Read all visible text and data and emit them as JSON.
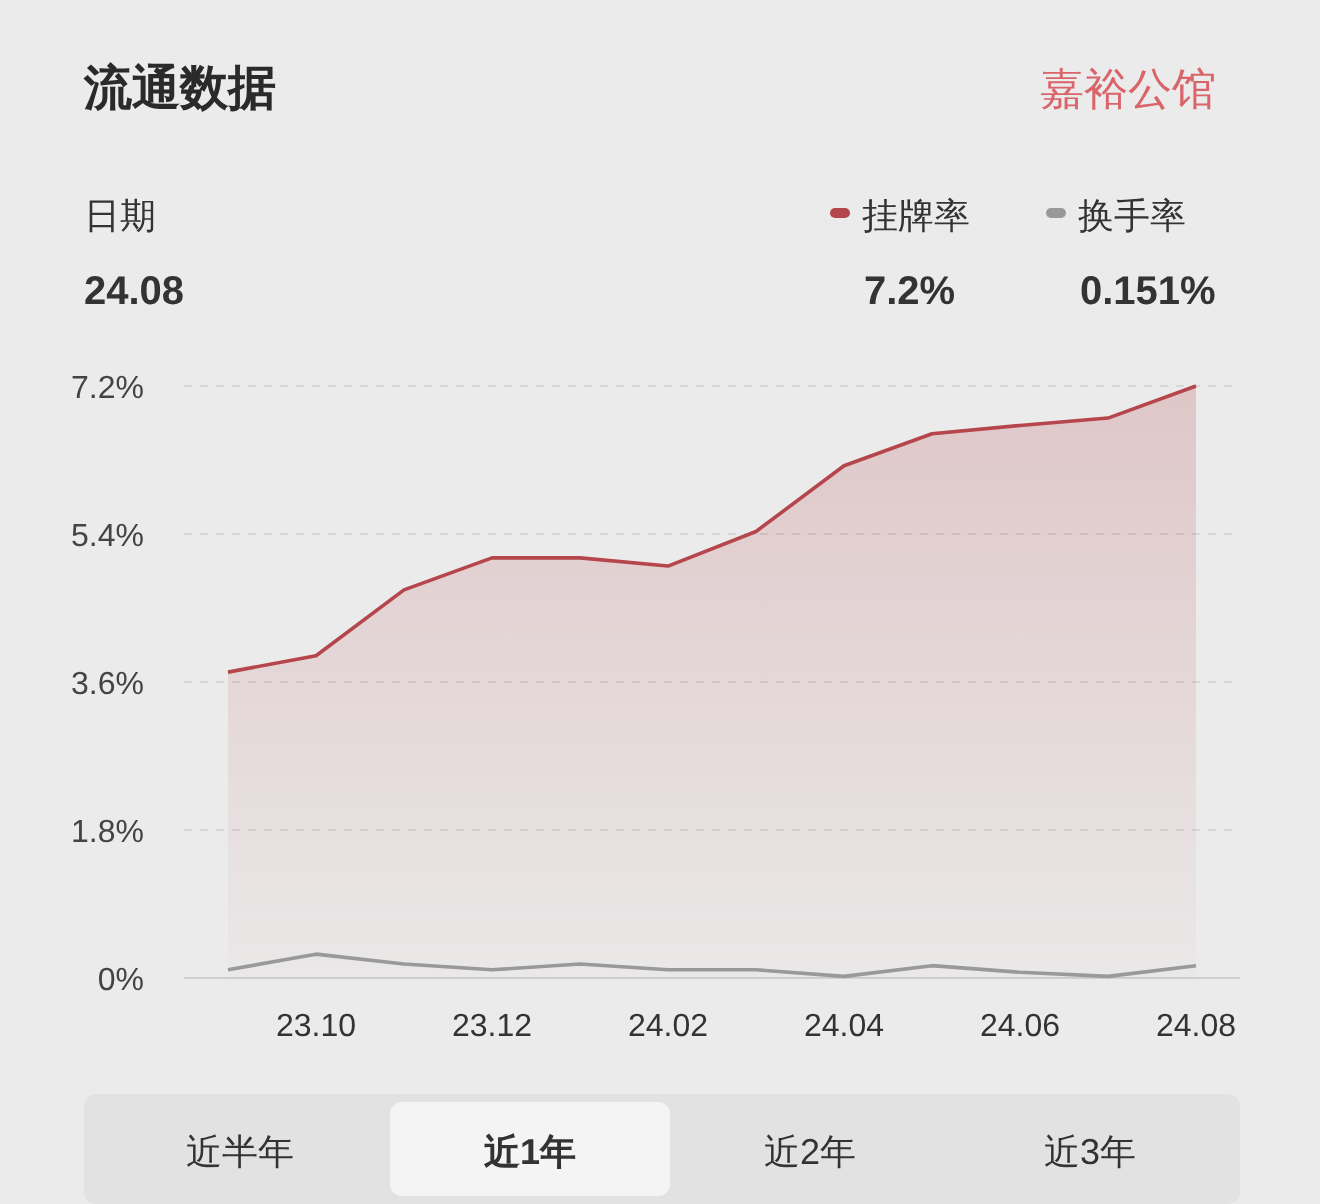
{
  "chart_data": {
    "type": "line",
    "title": "流通数据",
    "subtitle": "嘉裕公馆",
    "categories": [
      null,
      "23.10",
      null,
      "23.12",
      null,
      "24.02",
      null,
      "24.04",
      null,
      "24.06",
      null,
      "24.08"
    ],
    "series": [
      {
        "name": "挂牌率",
        "type": "area",
        "color": "#b5464b",
        "values": [
          3.72,
          3.92,
          4.72,
          5.11,
          5.11,
          5.01,
          5.43,
          6.23,
          6.62,
          6.72,
          6.81,
          7.2
        ]
      },
      {
        "name": "换手率",
        "color": "#999999",
        "values": [
          0.1,
          0.29,
          0.17,
          0.1,
          0.17,
          0.1,
          0.1,
          0.02,
          0.15,
          0.07,
          0.02,
          0.15
        ]
      }
    ],
    "ylim": [
      0,
      7.2
    ],
    "yticks": [
      {
        "value": 0,
        "label": "0%"
      },
      {
        "value": 1.8,
        "label": "1.8%"
      },
      {
        "value": 3.6,
        "label": "3.6%"
      },
      {
        "value": 5.4,
        "label": "5.4%"
      },
      {
        "value": 7.2,
        "label": "7.2%"
      }
    ],
    "grid": "y",
    "legend": "top right",
    "annotations": [
      "日期",
      "24.08",
      "7.2%",
      "0.151%",
      "近半年",
      "近1年",
      "近2年",
      "近3年"
    ]
  }
}
